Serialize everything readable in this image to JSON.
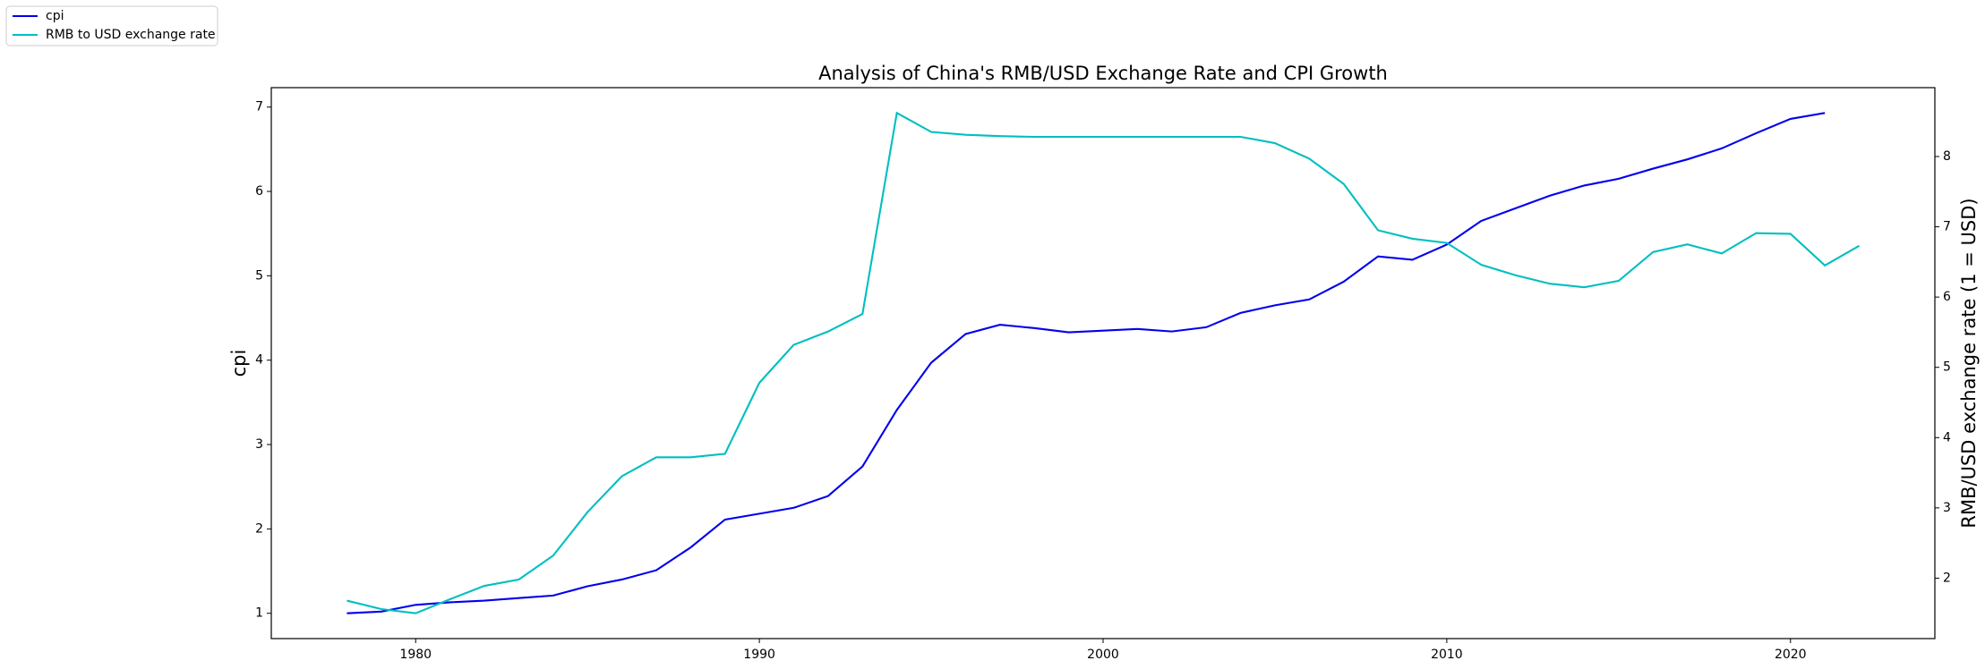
{
  "chart_data": {
    "type": "line",
    "title": "Analysis of China's RMB/USD Exchange Rate and CPI Growth",
    "y_label": "cpi",
    "y2_label": "RMB/USD exchange rate (1 = USD)",
    "x": [
      1978,
      1979,
      1980,
      1981,
      1982,
      1983,
      1984,
      1985,
      1986,
      1987,
      1988,
      1989,
      1990,
      1991,
      1992,
      1993,
      1994,
      1995,
      1996,
      1997,
      1998,
      1999,
      2000,
      2001,
      2002,
      2003,
      2004,
      2005,
      2006,
      2007,
      2008,
      2009,
      2010,
      2011,
      2012,
      2013,
      2014,
      2015,
      2016,
      2017,
      2018,
      2019,
      2020,
      2021,
      2022
    ],
    "series": [
      {
        "name": "cpi",
        "color": "#0000ee",
        "values": [
          1.0,
          1.02,
          1.1,
          1.13,
          1.15,
          1.18,
          1.21,
          1.32,
          1.4,
          1.51,
          1.78,
          2.11,
          2.18,
          2.25,
          2.39,
          2.74,
          3.41,
          3.97,
          4.31,
          4.42,
          4.38,
          4.33,
          4.35,
          4.37,
          4.34,
          4.39,
          4.56,
          4.65,
          4.72,
          4.93,
          5.23,
          5.19,
          5.37,
          5.65,
          5.8,
          5.95,
          6.07,
          6.15,
          6.27,
          6.38,
          6.51,
          6.69,
          6.86,
          6.93,
          null
        ]
      },
      {
        "name": "RMB to USD exchange rate",
        "color": "#00bfbf",
        "axis": "y2",
        "values": [
          1.68,
          1.56,
          1.5,
          1.7,
          1.89,
          1.98,
          2.32,
          2.94,
          3.45,
          3.72,
          3.72,
          3.77,
          4.78,
          5.32,
          5.51,
          5.76,
          8.62,
          8.35,
          8.31,
          8.29,
          8.28,
          8.28,
          8.28,
          8.28,
          8.28,
          8.28,
          8.28,
          8.19,
          7.97,
          7.61,
          6.95,
          6.83,
          6.77,
          6.46,
          6.31,
          6.19,
          6.14,
          6.23,
          6.64,
          6.75,
          6.62,
          6.91,
          6.9,
          6.45,
          6.73
        ]
      }
    ],
    "xlim": [
      1975.8,
      2024.2
    ],
    "xticks": [
      1980,
      1990,
      2000,
      2010,
      2020
    ],
    "ylim": [
      0.7,
      7.23
    ],
    "yticks": [
      1,
      2,
      3,
      4,
      5,
      6,
      7
    ],
    "y2lim": [
      1.14,
      8.98
    ],
    "y2ticks": [
      2,
      3,
      4,
      5,
      6,
      7,
      8
    ],
    "legend": "upper left"
  }
}
